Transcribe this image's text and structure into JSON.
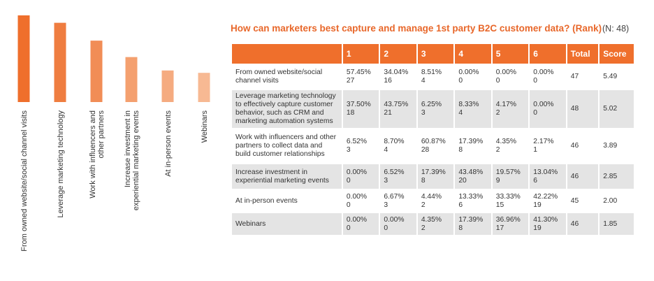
{
  "chart_data": {
    "type": "bar",
    "categories": [
      "From owned website/social channel visits",
      "Leverage marketing technology",
      "Work with influencers and other partners",
      "Increase investment in experiential marketing events",
      "At in-person events",
      "Webinars"
    ],
    "values": [
      5.49,
      5.02,
      3.89,
      2.85,
      2.0,
      1.85
    ],
    "colors": [
      "#ef6f2c",
      "#ef7d40",
      "#f18d56",
      "#f4a06f",
      "#f5ab80",
      "#f7b993"
    ]
  },
  "table": {
    "title": "How can marketers best capture and manage 1st party B2C customer data? (Rank)",
    "n_label": "(N: 48)",
    "headers": [
      "",
      "1",
      "2",
      "3",
      "4",
      "5",
      "6",
      "Total",
      "Score"
    ],
    "rows": [
      {
        "label": "From owned website/social channel visits",
        "cells": [
          [
            "57.45%",
            "27"
          ],
          [
            "34.04%",
            "16"
          ],
          [
            "8.51%",
            "4"
          ],
          [
            "0.00%",
            "0"
          ],
          [
            "0.00%",
            "0"
          ],
          [
            "0.00%",
            "0"
          ]
        ],
        "total": "47",
        "score": "5.49"
      },
      {
        "label": "Leverage marketing technology to effectively capture customer behavior, such as CRM and marketing automation systems",
        "cells": [
          [
            "37.50%",
            "18"
          ],
          [
            "43.75%",
            "21"
          ],
          [
            "6.25%",
            "3"
          ],
          [
            "8.33%",
            "4"
          ],
          [
            "4.17%",
            "2"
          ],
          [
            "0.00%",
            "0"
          ]
        ],
        "total": "48",
        "score": "5.02"
      },
      {
        "label": "Work with influencers and other partners to collect data and build customer relationships",
        "cells": [
          [
            "6.52%",
            "3"
          ],
          [
            "8.70%",
            "4"
          ],
          [
            "60.87%",
            "28"
          ],
          [
            "17.39%",
            "8"
          ],
          [
            "4.35%",
            "2"
          ],
          [
            "2.17%",
            "1"
          ]
        ],
        "total": "46",
        "score": "3.89"
      },
      {
        "label": "Increase investment in experiential marketing events",
        "cells": [
          [
            "0.00%",
            "0"
          ],
          [
            "6.52%",
            "3"
          ],
          [
            "17.39%",
            "8"
          ],
          [
            "43.48%",
            "20"
          ],
          [
            "19.57%",
            "9"
          ],
          [
            "13.04%",
            "6"
          ]
        ],
        "total": "46",
        "score": "2.85"
      },
      {
        "label": "At in-person events",
        "cells": [
          [
            "0.00%",
            "0"
          ],
          [
            "6.67%",
            "3"
          ],
          [
            "4.44%",
            "2"
          ],
          [
            "13.33%",
            "6"
          ],
          [
            "33.33%",
            "15"
          ],
          [
            "42.22%",
            "19"
          ]
        ],
        "total": "45",
        "score": "2.00"
      },
      {
        "label": "Webinars",
        "cells": [
          [
            "0.00%",
            "0"
          ],
          [
            "0.00%",
            "0"
          ],
          [
            "4.35%",
            "2"
          ],
          [
            "17.39%",
            "8"
          ],
          [
            "36.96%",
            "17"
          ],
          [
            "41.30%",
            "19"
          ]
        ],
        "total": "46",
        "score": "1.85"
      }
    ]
  }
}
